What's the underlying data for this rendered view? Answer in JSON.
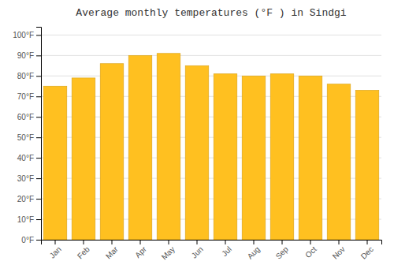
{
  "chart_data": {
    "type": "bar",
    "title": "Average monthly temperatures (°F ) in Sindgi",
    "categories": [
      "Jan",
      "Feb",
      "Mar",
      "Apr",
      "May",
      "Jun",
      "Jul",
      "Aug",
      "Sep",
      "Oct",
      "Nov",
      "Dec"
    ],
    "values": [
      75,
      79,
      86,
      90,
      91,
      85,
      81,
      80,
      81,
      80,
      76,
      73
    ],
    "color": "#FFC020",
    "ylim": [
      0,
      104
    ],
    "yticks": [
      {
        "value": 0,
        "label": "0°F"
      },
      {
        "value": 10,
        "label": "10°F"
      },
      {
        "value": 20,
        "label": "20°F"
      },
      {
        "value": 30,
        "label": "30°F"
      },
      {
        "value": 40,
        "label": "40°F"
      },
      {
        "value": 50,
        "label": "50°F"
      },
      {
        "value": 60,
        "label": "60°F"
      },
      {
        "value": 70,
        "label": "70°F"
      },
      {
        "value": 80,
        "label": "80°F"
      },
      {
        "value": 90,
        "label": "90°F"
      },
      {
        "value": 100,
        "label": "100°F"
      }
    ],
    "grid": true
  }
}
